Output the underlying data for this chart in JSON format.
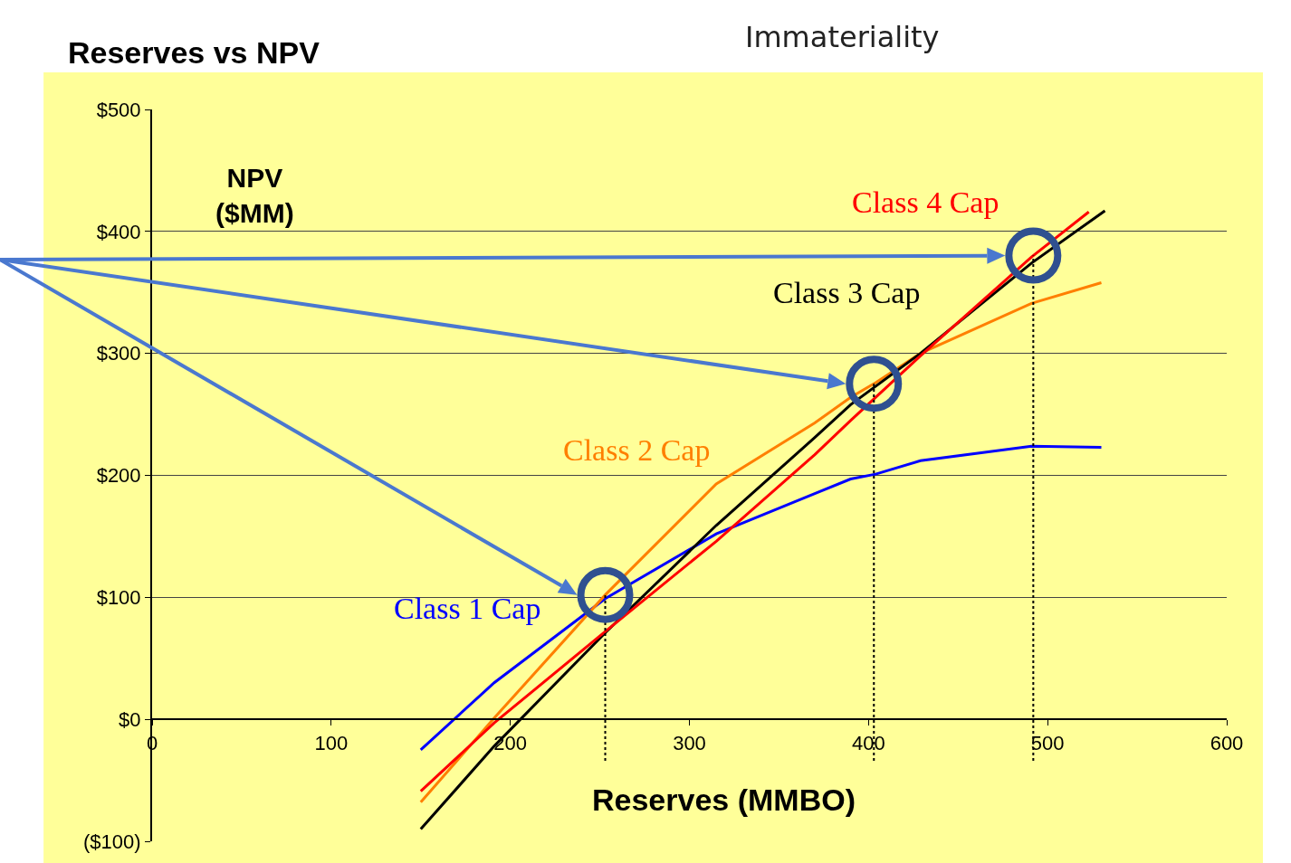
{
  "chart_data": {
    "type": "line",
    "title": "Reserves vs NPV",
    "xlabel": "Reserves (MMBO)",
    "ylabel": "NPV\n($MM)",
    "x": [
      150,
      191,
      253,
      315,
      370,
      390,
      404,
      429,
      491,
      530
    ],
    "series": [
      {
        "name": "Class 1 Cap",
        "color": "#0000ff",
        "values": [
          -25,
          30,
          99,
          152,
          185,
          197,
          201,
          212,
          224,
          223
        ]
      },
      {
        "name": "Class 2 Cap",
        "color": "#ff7f00",
        "values": [
          -68,
          1,
          102,
          193,
          243,
          264,
          276,
          300,
          341,
          358
        ]
      },
      {
        "name": "Class 3 Cap",
        "color": "#000000",
        "x": [
          150,
          191,
          253,
          315,
          370,
          390,
          429,
          491,
          532
        ],
        "values": [
          -90,
          -22,
          71,
          159,
          231,
          258,
          300,
          374,
          417
        ]
      },
      {
        "name": "Class 4 Cap",
        "color": "#ff0000",
        "x": [
          150,
          191,
          253,
          315,
          370,
          390,
          429,
          491,
          523
        ],
        "values": [
          -59,
          -3,
          72,
          146,
          217,
          245,
          298,
          379,
          416
        ]
      }
    ],
    "xlim": [
      0,
      600
    ],
    "xticks": [
      0,
      100,
      200,
      300,
      400,
      500,
      600
    ],
    "ylim": [
      -100,
      500
    ],
    "yticks": [
      {
        "value": -100,
        "label": "($100)"
      },
      {
        "value": 0,
        "label": "$0"
      },
      {
        "value": 100,
        "label": "$100"
      },
      {
        "value": 200,
        "label": "$200"
      },
      {
        "value": 300,
        "label": "$300"
      },
      {
        "value": 400,
        "label": "$400"
      },
      {
        "value": 500,
        "label": "$500"
      }
    ],
    "ref_lines": [
      {
        "axis": "x",
        "value": 253,
        "color": "#000000",
        "line_style": "dotted"
      },
      {
        "axis": "x",
        "value": 403,
        "color": "#000000",
        "line_style": "dotted"
      },
      {
        "axis": "x",
        "value": 492,
        "color": "#000000",
        "line_style": "dotted"
      }
    ],
    "annotations": [
      "Immateriality"
    ],
    "grid": "y",
    "legend": false,
    "marker": "none",
    "line_style": "solid"
  }
}
